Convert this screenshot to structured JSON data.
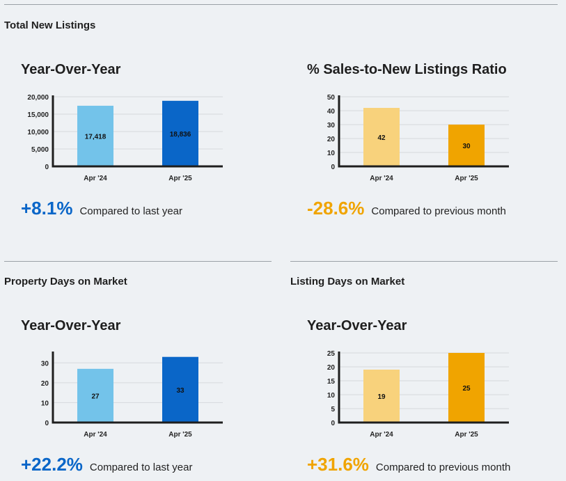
{
  "sections": {
    "total_new_listings": "Total New Listings",
    "property_days": "Property Days on Market",
    "listing_days": "Listing Days on Market"
  },
  "colors": {
    "light_blue": "#73c3ea",
    "dark_blue": "#0a66c8",
    "light_orange": "#f8d27c",
    "dark_orange": "#f0a400"
  },
  "chart_data": [
    {
      "id": "new-listings-yoy",
      "type": "bar",
      "title": "Year-Over-Year",
      "categories": [
        "Apr '24",
        "Apr '25"
      ],
      "values": [
        17418,
        18836
      ],
      "value_labels": [
        "17,418",
        "18,836"
      ],
      "ylim": [
        0,
        20000
      ],
      "yticks": [
        0,
        5000,
        10000,
        15000,
        20000
      ],
      "ytick_labels": [
        "0",
        "5,000",
        "10,000",
        "15,000",
        "20,000"
      ],
      "colors": [
        "#73c3ea",
        "#0a66c8"
      ],
      "grid": true,
      "stat_value": "+8.1%",
      "stat_text": "Compared to last year"
    },
    {
      "id": "sales-to-new-ratio",
      "type": "bar",
      "title": "% Sales-to-New Listings Ratio",
      "categories": [
        "Apr '24",
        "Apr '25"
      ],
      "values": [
        42,
        30
      ],
      "value_labels": [
        "42",
        "30"
      ],
      "ylim": [
        0,
        50
      ],
      "yticks": [
        0,
        10,
        20,
        30,
        40,
        50
      ],
      "ytick_labels": [
        "0",
        "10",
        "20",
        "30",
        "40",
        "50"
      ],
      "colors": [
        "#f8d27c",
        "#f0a400"
      ],
      "grid": true,
      "stat_value": "-28.6%",
      "stat_text": "Compared to previous month"
    },
    {
      "id": "property-days-yoy",
      "type": "bar",
      "title": "Year-Over-Year",
      "categories": [
        "Apr '24",
        "Apr '25"
      ],
      "values": [
        27,
        33
      ],
      "value_labels": [
        "27",
        "33"
      ],
      "ylim": [
        0,
        35
      ],
      "yticks": [
        0,
        10,
        20,
        30
      ],
      "ytick_labels": [
        "0",
        "10",
        "20",
        "30"
      ],
      "colors": [
        "#73c3ea",
        "#0a66c8"
      ],
      "grid": true,
      "stat_value": "+22.2%",
      "stat_text": "Compared to last year"
    },
    {
      "id": "listing-days-yoy",
      "type": "bar",
      "title": "Year-Over-Year",
      "categories": [
        "Apr '24",
        "Apr '25"
      ],
      "values": [
        19,
        25
      ],
      "value_labels": [
        "19",
        "25"
      ],
      "ylim": [
        0,
        25
      ],
      "yticks": [
        0,
        5,
        10,
        15,
        20,
        25
      ],
      "ytick_labels": [
        "0",
        "5",
        "10",
        "15",
        "20",
        "25"
      ],
      "colors": [
        "#f8d27c",
        "#f0a400"
      ],
      "grid": true,
      "stat_value": "+31.6%",
      "stat_text": "Compared to previous month"
    }
  ]
}
